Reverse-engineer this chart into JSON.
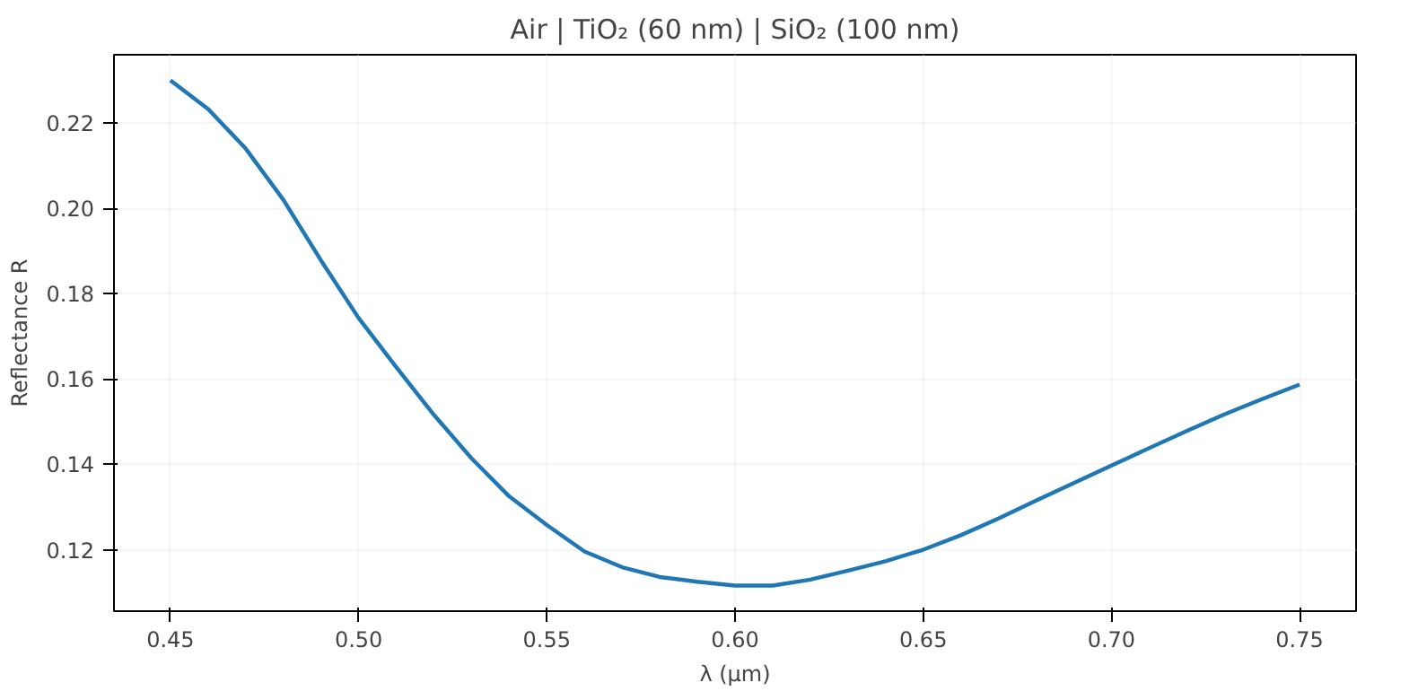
{
  "chart_data": {
    "type": "line",
    "title": "Air | TiO₂ (60 nm) | SiO₂ (100 nm)",
    "xlabel": "λ (µm)",
    "ylabel": "Reflectance R",
    "x": [
      0.45,
      0.46,
      0.47,
      0.48,
      0.49,
      0.5,
      0.51,
      0.52,
      0.53,
      0.54,
      0.55,
      0.56,
      0.57,
      0.58,
      0.59,
      0.6,
      0.61,
      0.62,
      0.63,
      0.64,
      0.65,
      0.66,
      0.67,
      0.68,
      0.69,
      0.7,
      0.71,
      0.72,
      0.73,
      0.74,
      0.75
    ],
    "series": [
      {
        "color": "#1f77b4",
        "values": [
          0.23,
          0.2233,
          0.214,
          0.202,
          0.1878,
          0.1743,
          0.1628,
          0.1516,
          0.1414,
          0.1325,
          0.1258,
          0.1196,
          0.1159,
          0.1136,
          0.1125,
          0.1116,
          0.1116,
          0.113,
          0.1151,
          0.1173,
          0.12,
          0.1234,
          0.1273,
          0.1315,
          0.1356,
          0.1397,
          0.1438,
          0.1478,
          0.1517,
          0.1553,
          0.1587
        ]
      }
    ],
    "xlim": [
      0.435,
      0.765
    ],
    "ylim": [
      0.1056,
      0.236
    ],
    "xticks": [
      {
        "value": 0.45,
        "label": "0.45"
      },
      {
        "value": 0.5,
        "label": "0.50"
      },
      {
        "value": 0.55,
        "label": "0.55"
      },
      {
        "value": 0.6,
        "label": "0.60"
      },
      {
        "value": 0.65,
        "label": "0.65"
      },
      {
        "value": 0.7,
        "label": "0.70"
      },
      {
        "value": 0.75,
        "label": "0.75"
      }
    ],
    "yticks": [
      {
        "value": 0.12,
        "label": "0.12"
      },
      {
        "value": 0.14,
        "label": "0.14"
      },
      {
        "value": 0.16,
        "label": "0.16"
      },
      {
        "value": 0.18,
        "label": "0.18"
      },
      {
        "value": 0.2,
        "label": "0.20"
      },
      {
        "value": 0.22,
        "label": "0.22"
      }
    ],
    "grid": true
  }
}
